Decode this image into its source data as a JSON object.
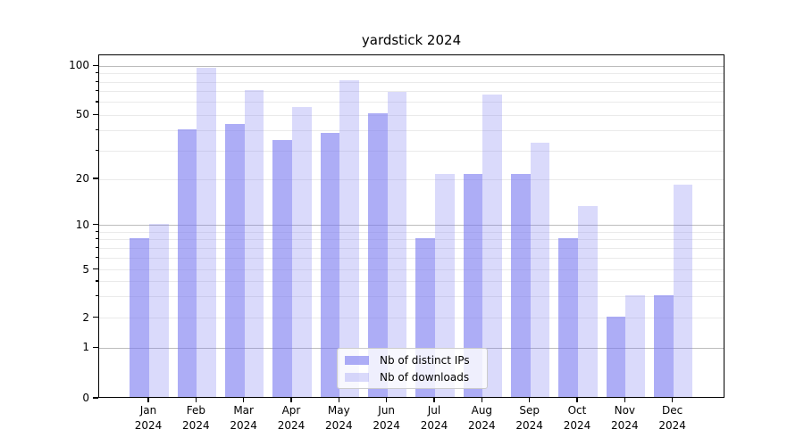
{
  "title": "yardstick 2024",
  "chart_data": {
    "type": "bar",
    "title": "yardstick 2024",
    "categories": [
      "Jan",
      "Feb",
      "Mar",
      "Apr",
      "May",
      "Jun",
      "Jul",
      "Aug",
      "Sep",
      "Oct",
      "Nov",
      "Dec"
    ],
    "category_year": "2024",
    "series": [
      {
        "name": "Nb of distinct IPs",
        "color": "rgba(122,122,240,0.62)",
        "values": [
          8,
          40,
          43,
          34,
          38,
          50,
          8,
          21,
          21,
          8,
          2,
          3
        ]
      },
      {
        "name": "Nb of downloads",
        "color": "rgba(122,122,240,0.28)",
        "values": [
          10,
          95,
          70,
          55,
          80,
          68,
          21,
          65,
          33,
          13,
          3,
          18
        ]
      }
    ],
    "yticks": [
      0,
      1,
      2,
      5,
      10,
      20,
      50,
      100
    ],
    "ylim": [
      0,
      115
    ],
    "xlabel": "",
    "ylabel": "",
    "scale": "symlog (log above 1, linear 0-1)",
    "grid": true,
    "legend_position": "lower center"
  }
}
